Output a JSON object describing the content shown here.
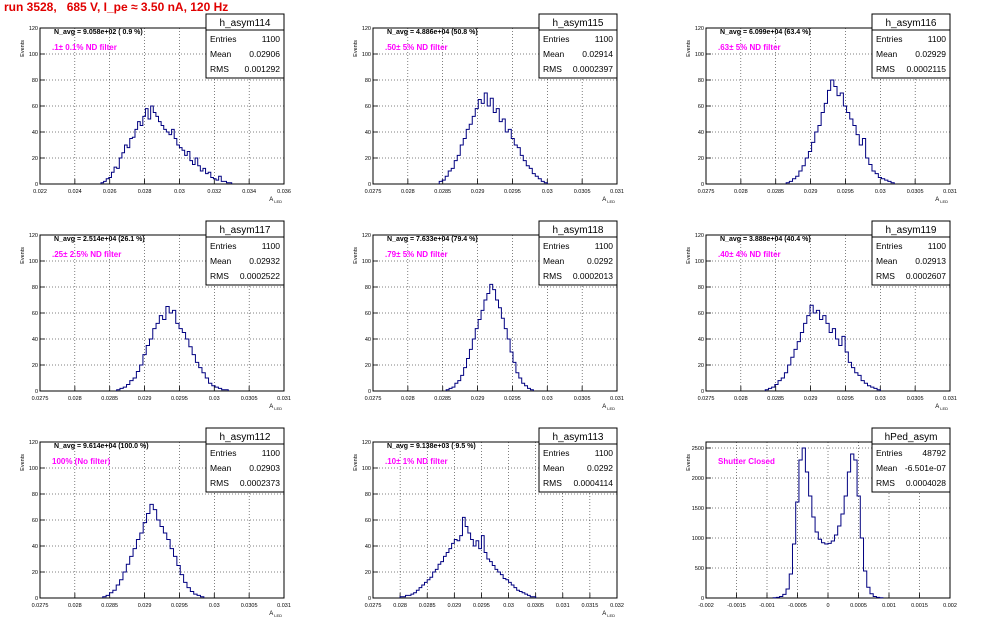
{
  "title": "run 3528,   685 V, I_pe ≈ 3.50 nA, 120 Hz",
  "colors": {
    "histogram": "#000080",
    "annotation": "#ff00ff",
    "title": "#e00000",
    "grid": "#000000"
  },
  "chart_data": [
    {
      "type": "bar",
      "name": "h_asym114",
      "ylabel": "Events",
      "xlabel": "A_LED",
      "navg": "N_avg = 9.058e+02 ( 0.9 %)",
      "filter": ".1± 0.1% ND filter",
      "stats": {
        "entries": "1100",
        "mean": "0.02906",
        "rms": "0.001292"
      },
      "xlim": [
        0.022,
        0.036
      ],
      "ylim": [
        0,
        120
      ],
      "xticks": [
        "0.022",
        "0.024",
        "0.026",
        "0.028",
        "0.03",
        "0.032",
        "0.034",
        "0.036"
      ],
      "yticks": [
        "0",
        "20",
        "40",
        "60",
        "80",
        "100",
        "120"
      ],
      "bin_edges_range": [
        0.0255,
        0.033
      ],
      "values": [
        1,
        2,
        4,
        5,
        9,
        13,
        12,
        20,
        24,
        30,
        28,
        35,
        36,
        42,
        48,
        45,
        52,
        58,
        50,
        60,
        55,
        52,
        48,
        45,
        42,
        40,
        38,
        42,
        35,
        30,
        28,
        26,
        22,
        25,
        18,
        15,
        20,
        14,
        10,
        12,
        8,
        9,
        5,
        4,
        3,
        6,
        2,
        2,
        1,
        1
      ]
    },
    {
      "type": "bar",
      "name": "h_asym115",
      "ylabel": "Events",
      "xlabel": "A_LED",
      "navg": "N_avg = 4.886e+04 (50.8 %)",
      "filter": ".50± 5% ND filter",
      "stats": {
        "entries": "1100",
        "mean": "0.02914",
        "rms": "0.0002397"
      },
      "xlim": [
        0.0275,
        0.031
      ],
      "ylim": [
        0,
        120
      ],
      "xticks": [
        "0.0275",
        "0.028",
        "0.0285",
        "0.029",
        "0.0295",
        "0.03",
        "0.0305",
        "0.031"
      ],
      "yticks": [
        "0",
        "20",
        "40",
        "60",
        "80",
        "100",
        "120"
      ],
      "bin_edges_range": [
        0.02845,
        0.03
      ],
      "values": [
        2,
        3,
        6,
        10,
        12,
        18,
        22,
        30,
        35,
        42,
        46,
        52,
        58,
        65,
        62,
        70,
        60,
        66,
        55,
        58,
        48,
        50,
        40,
        42,
        35,
        30,
        28,
        22,
        18,
        14,
        12,
        8,
        6,
        4,
        2,
        1
      ]
    },
    {
      "type": "bar",
      "name": "h_asym116",
      "ylabel": "Events",
      "xlabel": "A_LED",
      "navg": "N_avg = 6.099e+04 (63.4 %)",
      "filter": ".63± 5% ND filter",
      "stats": {
        "entries": "1100",
        "mean": "0.02929",
        "rms": "0.0002115"
      },
      "xlim": [
        0.0275,
        0.031
      ],
      "ylim": [
        0,
        120
      ],
      "xticks": [
        "0.0275",
        "0.028",
        "0.0285",
        "0.029",
        "0.0295",
        "0.03",
        "0.0305",
        "0.031"
      ],
      "yticks": [
        "0",
        "20",
        "40",
        "60",
        "80",
        "100",
        "120"
      ],
      "bin_edges_range": [
        0.02865,
        0.0302
      ],
      "values": [
        1,
        2,
        4,
        6,
        10,
        14,
        20,
        25,
        32,
        40,
        45,
        55,
        62,
        72,
        80,
        75,
        68,
        70,
        60,
        55,
        50,
        45,
        38,
        30,
        35,
        20,
        15,
        10,
        8,
        5,
        4,
        3,
        2,
        1
      ]
    },
    {
      "type": "bar",
      "name": "h_asym117",
      "ylabel": "Events",
      "xlabel": "A_LED",
      "navg": "N_avg = 2.514e+04 (26.1 %)",
      "filter": ".25± 2.5% ND filter",
      "stats": {
        "entries": "1100",
        "mean": "0.02932",
        "rms": "0.0002522"
      },
      "xlim": [
        0.0275,
        0.031
      ],
      "ylim": [
        0,
        120
      ],
      "xticks": [
        "0.0275",
        "0.028",
        "0.0285",
        "0.029",
        "0.0295",
        "0.03",
        "0.0305",
        "0.031"
      ],
      "yticks": [
        "0",
        "20",
        "40",
        "60",
        "80",
        "100",
        "120"
      ],
      "bin_edges_range": [
        0.0286,
        0.0302
      ],
      "values": [
        1,
        2,
        3,
        5,
        8,
        10,
        15,
        20,
        28,
        35,
        40,
        48,
        52,
        58,
        55,
        65,
        60,
        62,
        52,
        48,
        45,
        40,
        34,
        28,
        22,
        18,
        14,
        10,
        6,
        4,
        3,
        2,
        1,
        1
      ]
    },
    {
      "type": "bar",
      "name": "h_asym118",
      "ylabel": "Events",
      "xlabel": "A_LED",
      "navg": "N_avg = 7.633e+04 (79.4 %)",
      "filter": ".79± 5% ND filter",
      "stats": {
        "entries": "1100",
        "mean": "0.0292",
        "rms": "0.0002013"
      },
      "xlim": [
        0.0275,
        0.031
      ],
      "ylim": [
        0,
        120
      ],
      "xticks": [
        "0.0275",
        "0.028",
        "0.0285",
        "0.029",
        "0.0295",
        "0.03",
        "0.0305",
        "0.031"
      ],
      "yticks": [
        "0",
        "20",
        "40",
        "60",
        "80",
        "100",
        "120"
      ],
      "bin_edges_range": [
        0.02855,
        0.0298
      ],
      "values": [
        1,
        2,
        3,
        6,
        8,
        12,
        18,
        25,
        32,
        40,
        48,
        55,
        62,
        70,
        75,
        82,
        78,
        70,
        64,
        56,
        48,
        40,
        30,
        22,
        14,
        10,
        6,
        4,
        2,
        1
      ]
    },
    {
      "type": "bar",
      "name": "h_asym119",
      "ylabel": "Events",
      "xlabel": "A_LED",
      "navg": "N_avg = 3.888e+04 (40.4 %)",
      "filter": ".40± 4% ND filter",
      "stats": {
        "entries": "1100",
        "mean": "0.02913",
        "rms": "0.0002607"
      },
      "xlim": [
        0.0275,
        0.031
      ],
      "ylim": [
        0,
        120
      ],
      "xticks": [
        "0.0275",
        "0.028",
        "0.0285",
        "0.029",
        "0.0295",
        "0.03",
        "0.0305",
        "0.031"
      ],
      "yticks": [
        "0",
        "20",
        "40",
        "60",
        "80",
        "100",
        "120"
      ],
      "bin_edges_range": [
        0.02835,
        0.03
      ],
      "values": [
        1,
        2,
        3,
        5,
        8,
        10,
        14,
        20,
        26,
        32,
        38,
        45,
        52,
        58,
        66,
        60,
        62,
        55,
        58,
        52,
        45,
        48,
        40,
        35,
        42,
        30,
        22,
        18,
        14,
        12,
        8,
        6,
        4,
        3,
        2,
        1
      ]
    },
    {
      "type": "bar",
      "name": "h_asym112",
      "ylabel": "Events",
      "xlabel": "A_LED",
      "navg": "N_avg = 9.614e+04 (100.0 %)",
      "filter": "100% (No filter)",
      "stats": {
        "entries": "1100",
        "mean": "0.02903",
        "rms": "0.0002373"
      },
      "xlim": [
        0.0275,
        0.031
      ],
      "ylim": [
        0,
        120
      ],
      "xticks": [
        "0.0275",
        "0.028",
        "0.0285",
        "0.029",
        "0.0295",
        "0.03",
        "0.0305",
        "0.031"
      ],
      "yticks": [
        "0",
        "20",
        "40",
        "60",
        "80",
        "100",
        "120"
      ],
      "bin_edges_range": [
        0.0284,
        0.02985
      ],
      "values": [
        1,
        2,
        4,
        6,
        10,
        14,
        20,
        26,
        32,
        38,
        45,
        50,
        58,
        65,
        72,
        68,
        60,
        55,
        50,
        45,
        38,
        32,
        25,
        18,
        12,
        8,
        5,
        3,
        2,
        1
      ]
    },
    {
      "type": "bar",
      "name": "h_asym113",
      "ylabel": "Events",
      "xlabel": "A_LED",
      "navg": "N_avg = 9.138e+03 ( 9.5 %)",
      "filter": ".10± 1% ND filter",
      "stats": {
        "entries": "1100",
        "mean": "0.0292",
        "rms": "0.0004114"
      },
      "xlim": [
        0.0275,
        0.032
      ],
      "ylim": [
        0,
        120
      ],
      "xticks": [
        "0.0275",
        "0.028",
        "0.0285",
        "0.029",
        "0.0295",
        "0.03",
        "0.0305",
        "0.031",
        "0.0315",
        "0.032"
      ],
      "yticks": [
        "0",
        "20",
        "40",
        "60",
        "80",
        "100",
        "120"
      ],
      "bin_edges_range": [
        0.028,
        0.0305
      ],
      "values": [
        1,
        1,
        2,
        2,
        3,
        4,
        6,
        8,
        10,
        12,
        14,
        16,
        20,
        22,
        26,
        28,
        32,
        35,
        38,
        42,
        45,
        44,
        48,
        62,
        55,
        50,
        45,
        40,
        44,
        38,
        48,
        35,
        30,
        28,
        25,
        22,
        20,
        18,
        15,
        14,
        12,
        10,
        8,
        6,
        5,
        4,
        3,
        2,
        1,
        1
      ]
    },
    {
      "type": "bar",
      "name": "hPed_asym",
      "ylabel": "Events",
      "xlabel": "",
      "navg": "",
      "filter": "Shutter Closed",
      "stats": {
        "entries": "48792",
        "mean": "-6.501e-07",
        "rms": "0.0004028"
      },
      "xlim": [
        -0.002,
        0.002
      ],
      "ylim": [
        0,
        2600
      ],
      "xticks": [
        "-0.002",
        "-0.0015",
        "-0.001",
        "-0.0005",
        "0",
        "0.0005",
        "0.001",
        "0.0015",
        "0.002"
      ],
      "yticks": [
        "0",
        "500",
        "1000",
        "1500",
        "2000",
        "2500"
      ],
      "bin_edges_range": [
        -0.0009,
        0.0009
      ],
      "values": [
        5,
        10,
        25,
        60,
        150,
        400,
        900,
        1600,
        2300,
        2500,
        2100,
        1700,
        1350,
        1100,
        980,
        920,
        900,
        910,
        950,
        1050,
        1200,
        1400,
        1700,
        2100,
        2400,
        2300,
        1700,
        1000,
        450,
        180,
        70,
        25,
        10,
        5
      ]
    }
  ]
}
